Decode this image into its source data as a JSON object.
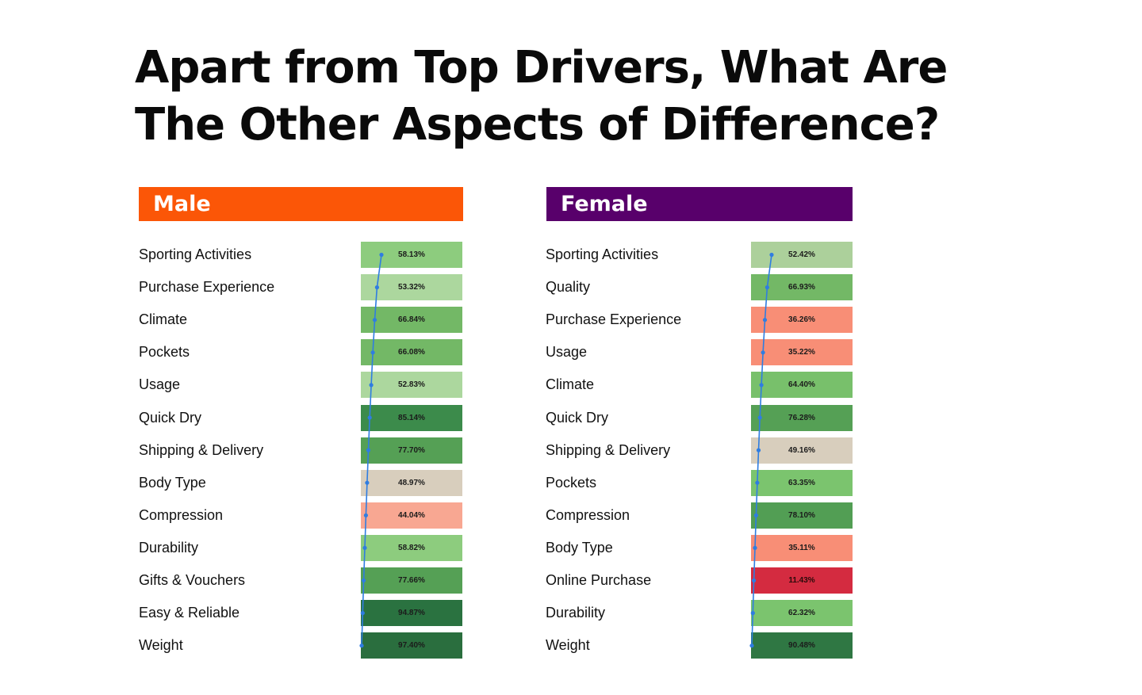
{
  "title": {
    "line1": "Apart from Top Drivers, What Are",
    "line2": "The Other Aspects of Difference?"
  },
  "colors": {
    "male_header": "#fb5607",
    "female_header": "#58006b",
    "trend_line": "#2f7de1"
  },
  "chart_data": [
    {
      "type": "table",
      "title": "Male",
      "header_color": "#fb5607",
      "value_format": "percent",
      "rows": [
        {
          "label": "Sporting Activities",
          "value": 58.13,
          "display": "58.13%",
          "color": "#8dcc7e"
        },
        {
          "label": "Purchase Experience",
          "value": 53.32,
          "display": "53.32%",
          "color": "#acd79e"
        },
        {
          "label": "Climate",
          "value": 66.84,
          "display": "66.84%",
          "color": "#73b866"
        },
        {
          "label": "Pockets",
          "value": 66.08,
          "display": "66.08%",
          "color": "#73b866"
        },
        {
          "label": "Usage",
          "value": 52.83,
          "display": "52.83%",
          "color": "#acd79e"
        },
        {
          "label": "Quick Dry",
          "value": 85.14,
          "display": "85.14%",
          "color": "#3c8b4b"
        },
        {
          "label": "Shipping & Delivery",
          "value": 77.7,
          "display": "77.70%",
          "color": "#55a055"
        },
        {
          "label": "Body Type",
          "value": 48.97,
          "display": "48.97%",
          "color": "#d8cebd"
        },
        {
          "label": "Compression",
          "value": 44.04,
          "display": "44.04%",
          "color": "#f8a792"
        },
        {
          "label": "Durability",
          "value": 58.82,
          "display": "58.82%",
          "color": "#8dcc7e"
        },
        {
          "label": "Gifts & Vouchers",
          "value": 77.66,
          "display": "77.66%",
          "color": "#55a055"
        },
        {
          "label": "Easy & Reliable",
          "value": 94.87,
          "display": "94.87%",
          "color": "#2a7240"
        },
        {
          "label": "Weight",
          "value": 97.4,
          "display": "97.40%",
          "color": "#2a6e3e"
        }
      ]
    },
    {
      "type": "table",
      "title": "Female",
      "header_color": "#58006b",
      "value_format": "percent",
      "rows": [
        {
          "label": "Sporting Activities",
          "value": 52.42,
          "display": "52.42%",
          "color": "#acd09b"
        },
        {
          "label": "Quality",
          "value": 66.93,
          "display": "66.93%",
          "color": "#73b866"
        },
        {
          "label": "Purchase Experience",
          "value": 36.26,
          "display": "36.26%",
          "color": "#f88e76"
        },
        {
          "label": "Usage",
          "value": 35.22,
          "display": "35.22%",
          "color": "#f88e76"
        },
        {
          "label": "Climate",
          "value": 64.4,
          "display": "64.40%",
          "color": "#78c06b"
        },
        {
          "label": "Quick Dry",
          "value": 76.28,
          "display": "76.28%",
          "color": "#55a055"
        },
        {
          "label": "Shipping & Delivery",
          "value": 49.16,
          "display": "49.16%",
          "color": "#d8cebd"
        },
        {
          "label": "Pockets",
          "value": 63.35,
          "display": "63.35%",
          "color": "#7bc46e"
        },
        {
          "label": "Compression",
          "value": 78.1,
          "display": "78.10%",
          "color": "#529e54"
        },
        {
          "label": "Body Type",
          "value": 35.11,
          "display": "35.11%",
          "color": "#f88e76"
        },
        {
          "label": "Online Purchase",
          "value": 11.43,
          "display": "11.43%",
          "color": "#d42b40"
        },
        {
          "label": "Durability",
          "value": 62.32,
          "display": "62.32%",
          "color": "#7bc46e"
        },
        {
          "label": "Weight",
          "value": 90.48,
          "display": "90.48%",
          "color": "#2f7743"
        }
      ]
    }
  ]
}
